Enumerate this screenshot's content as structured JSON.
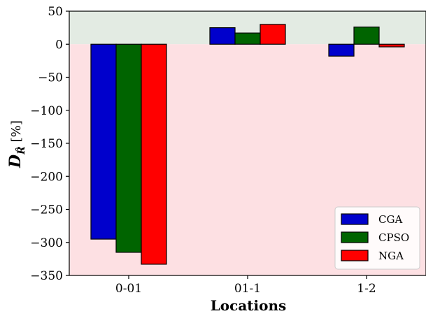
{
  "chart_data": {
    "type": "bar",
    "categories": [
      "0-01",
      "01-1",
      "1-2"
    ],
    "series": [
      {
        "name": "CGA",
        "values": [
          -295,
          25,
          -18
        ],
        "color": "#0000cc"
      },
      {
        "name": "CPSO",
        "values": [
          -315,
          17,
          26
        ],
        "color": "#006400"
      },
      {
        "name": "NGA",
        "values": [
          -333,
          30,
          -4
        ],
        "color": "#ff0000"
      }
    ],
    "title": "",
    "xlabel": "Locations",
    "ylabel_main": "D",
    "ylabel_subscript": "R̂",
    "ylabel_unit": "[%]",
    "ylim": [
      -350,
      50
    ],
    "yticks": [
      50,
      0,
      -50,
      -100,
      -150,
      -200,
      -250,
      -300,
      -350
    ],
    "ytick_labels": [
      "50",
      "0",
      "−50",
      "−100",
      "−150",
      "−200",
      "−250",
      "−300",
      "−350"
    ],
    "positive_region_color": "#e3ebe3",
    "negative_region_color": "#fde0e3",
    "grid": false,
    "legend_position": "bottom-right"
  }
}
